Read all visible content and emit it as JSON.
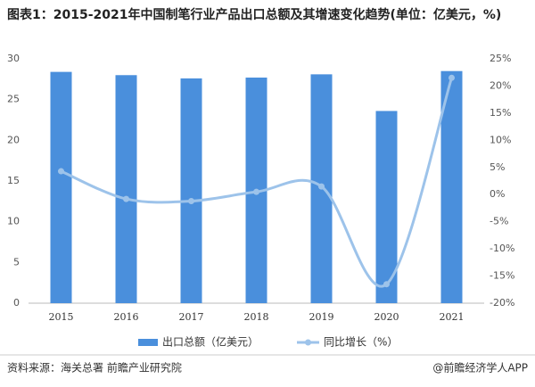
{
  "chart_data": {
    "type": "bar",
    "title": "图表1：2015-2021年中国制笔行业产品出口总额及其增速变化趋势(单位：亿美元，%)",
    "categories": [
      "2015",
      "2016",
      "2017",
      "2018",
      "2019",
      "2020",
      "2021"
    ],
    "series": [
      {
        "name": "出口总额（亿美元）",
        "type": "bar",
        "color": "#4a8fdc",
        "values": [
          28.4,
          28.0,
          27.6,
          27.7,
          28.1,
          23.6,
          28.5
        ]
      },
      {
        "name": "同比增长（%）",
        "type": "line",
        "axis": "y2",
        "color": "#9dc3ea",
        "values": [
          4.3,
          -0.8,
          -1.2,
          0.5,
          1.5,
          -16.5,
          21.5
        ]
      }
    ],
    "ylim": [
      0,
      30
    ],
    "yticks": [
      0,
      5,
      10,
      15,
      20,
      25,
      30
    ],
    "y2lim": [
      -20,
      25
    ],
    "y2ticks": [
      {
        "value": -20,
        "label": "-20%"
      },
      {
        "value": -15,
        "label": "-15%"
      },
      {
        "value": -10,
        "label": "-10%"
      },
      {
        "value": -5,
        "label": "-5%"
      },
      {
        "value": 0,
        "label": "0%"
      },
      {
        "value": 5,
        "label": "5%"
      },
      {
        "value": 10,
        "label": "10%"
      },
      {
        "value": 15,
        "label": "15%"
      },
      {
        "value": 20,
        "label": "20%"
      },
      {
        "value": 25,
        "label": "25%"
      }
    ],
    "source": "资料来源：海关总署 前瞻产业研究院",
    "credit": "@前瞻经济学人APP"
  }
}
